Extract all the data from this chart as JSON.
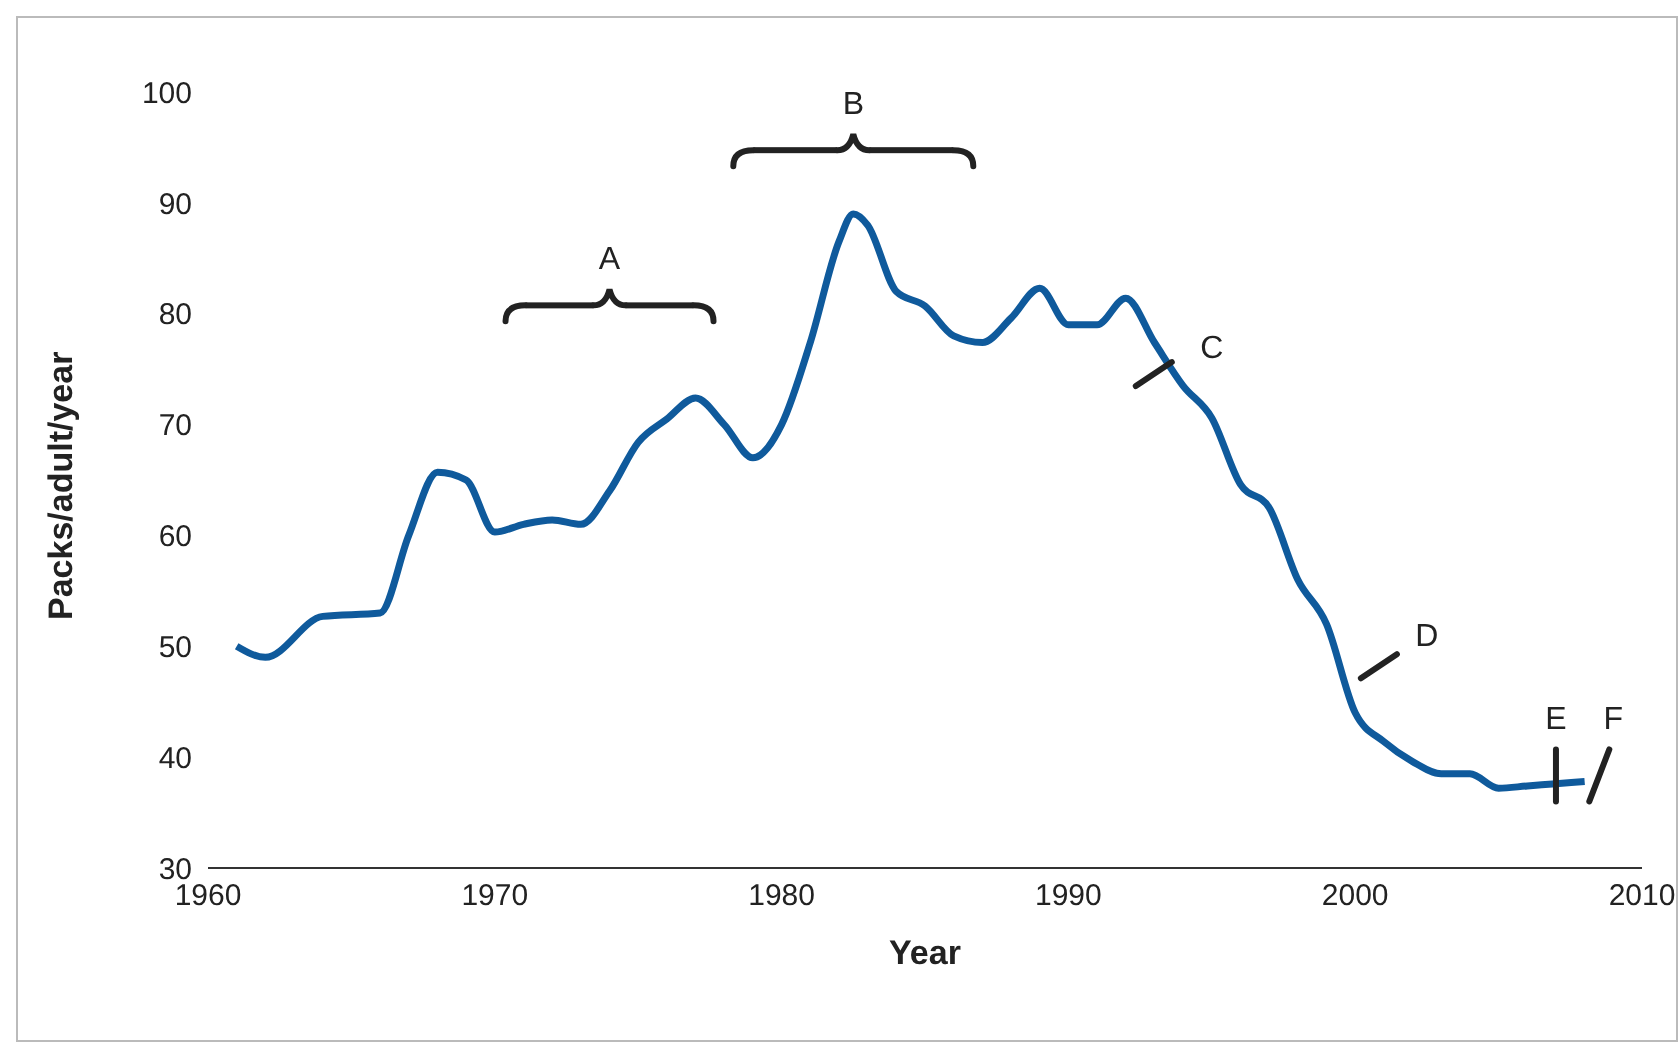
{
  "chart_data": {
    "type": "line",
    "xlabel": "Year",
    "ylabel": "Packs/adult/year",
    "x": [
      1961,
      1962,
      1964,
      1966,
      1967,
      1968,
      1969,
      1970,
      1971,
      1972,
      1973,
      1974,
      1975,
      1976,
      1977,
      1978,
      1979,
      1980,
      1981,
      1982,
      1982.5,
      1983,
      1984,
      1985,
      1986,
      1987,
      1988,
      1989,
      1990,
      1991,
      1992,
      1993,
      1994,
      1995,
      1996,
      1997,
      1998,
      1999,
      2000,
      2001,
      2002,
      2003,
      2004,
      2005,
      2006,
      2007,
      2008
    ],
    "series": [
      {
        "color": "#0f5a9c",
        "values": [
          50,
          49,
          52.7,
          53,
          60,
          65.7,
          65,
          60.3,
          61,
          61.4,
          61,
          64,
          68.4,
          70.5,
          72.4,
          70,
          67,
          70,
          77.4,
          86.5,
          89,
          88,
          82,
          80.7,
          78,
          77.4,
          79.6,
          82.3,
          79,
          79,
          81.4,
          77.4,
          73.5,
          70.6,
          64.6,
          62.5,
          56,
          52,
          44,
          41.4,
          39.6,
          38.5,
          38.5,
          37.2,
          37.4,
          37.6,
          37.8
        ]
      }
    ],
    "xlim": [
      1960,
      2010
    ],
    "xticks": [
      1960,
      1970,
      1980,
      1990,
      2000,
      2010
    ],
    "ylim": [
      30,
      100
    ],
    "yticks": [
      30,
      40,
      50,
      60,
      70,
      80,
      90,
      100
    ],
    "grid": false,
    "marker": "none",
    "line_style": "solid",
    "annotations": [
      "A",
      "B",
      "C",
      "D",
      "E",
      "F"
    ]
  }
}
